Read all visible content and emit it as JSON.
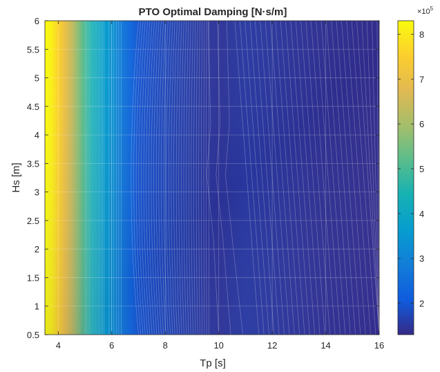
{
  "chart_data": {
    "type": "heatmap",
    "title": "PTO Optimal Damping [N·s/m]",
    "xlabel": "Tp [s]",
    "ylabel": "Hs [m]",
    "xlim": [
      3.5,
      16
    ],
    "ylim": [
      0.5,
      6
    ],
    "xticks": [
      "4",
      "6",
      "8",
      "10",
      "12",
      "14",
      "16"
    ],
    "yticks": [
      "0.5",
      "1",
      "1.5",
      "2",
      "2.5",
      "3",
      "3.5",
      "4",
      "4.5",
      "5",
      "5.5",
      "6"
    ],
    "colorbar": {
      "range": [
        130000,
        830000
      ],
      "ticks": [
        "2",
        "3",
        "4",
        "5",
        "6",
        "7",
        "8"
      ],
      "exponent_label": "×10",
      "exponent": "5"
    },
    "colormap": "parula",
    "grid": true,
    "profile_by_tp": {
      "x": [
        3.5,
        3.75,
        4.0,
        4.25,
        4.5,
        4.75,
        5.0,
        5.25,
        5.5,
        5.75,
        6.0,
        6.25,
        6.5,
        6.75,
        7.0,
        7.5,
        8.0,
        8.5,
        9.0,
        9.5,
        10.0,
        10.5,
        11.0,
        12.0,
        13.0,
        14.0,
        15.0,
        16.0
      ],
      "values": [
        830000,
        810000,
        760000,
        700000,
        640000,
        570000,
        500000,
        440000,
        400000,
        365000,
        340000,
        300000,
        260000,
        230000,
        195000,
        185000,
        175000,
        165000,
        158000,
        150000,
        145000,
        150000,
        155000,
        150000,
        145000,
        140000,
        138000,
        135000
      ]
    },
    "colors": {
      "low": "#352a87",
      "mid": "#12beb9",
      "high": "#f9fb0e"
    }
  }
}
